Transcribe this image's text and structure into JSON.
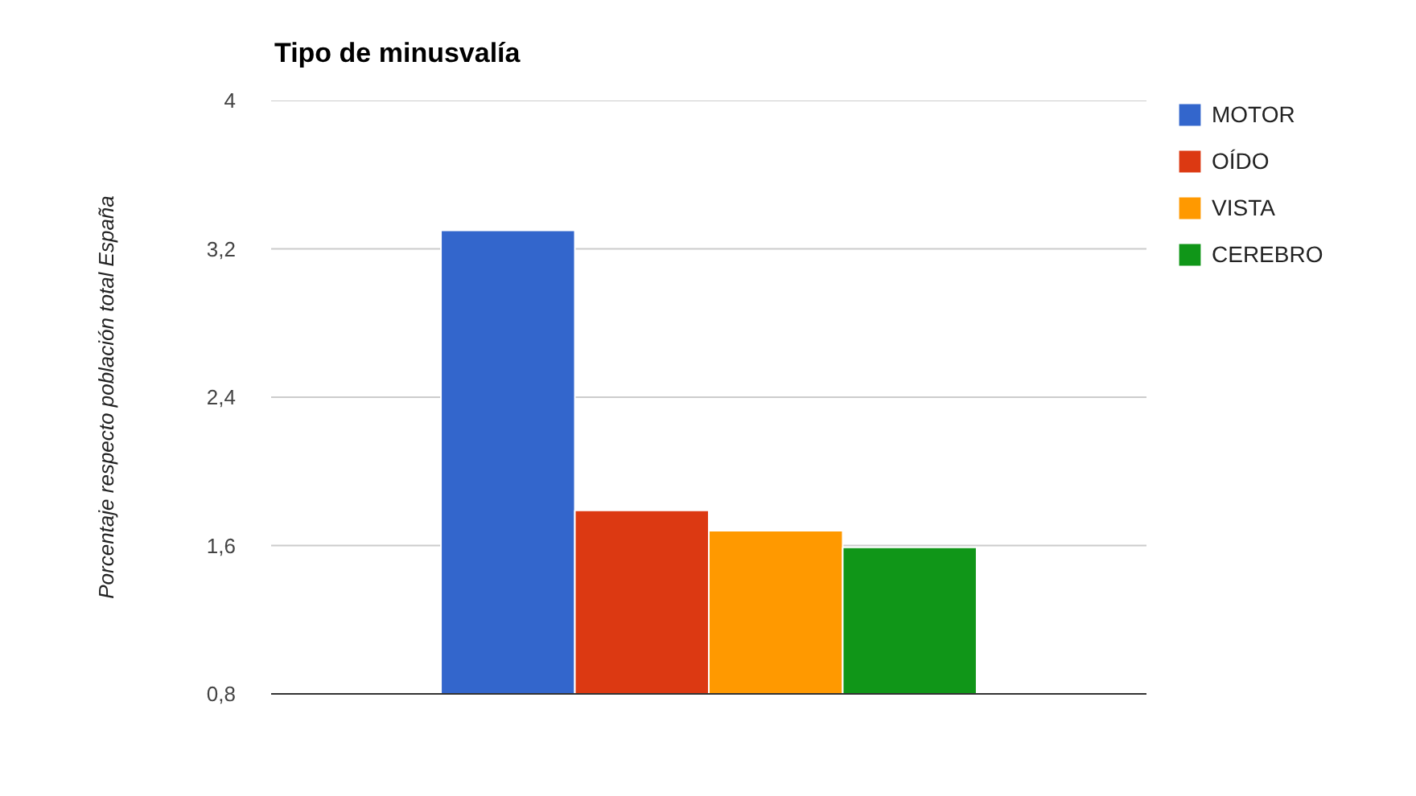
{
  "chart_data": {
    "type": "bar",
    "title": "Tipo de minusvalía",
    "ylabel": "Porcentaje respecto población total España",
    "categories": [
      null
    ],
    "series": [
      {
        "name": "MOTOR",
        "color": "#3366cc",
        "values": [
          3.3
        ]
      },
      {
        "name": "OÍDO",
        "color": "#dc3912",
        "values": [
          1.79
        ]
      },
      {
        "name": "VISTA",
        "color": "#ff9900",
        "values": [
          1.68
        ]
      },
      {
        "name": "CEREBRO",
        "color": "#109618",
        "values": [
          1.59
        ]
      }
    ],
    "ylim": [
      0.8,
      4
    ],
    "yticks": [
      {
        "value": 0.8,
        "label": "0,8"
      },
      {
        "value": 1.6,
        "label": "1,6"
      },
      {
        "value": 2.4,
        "label": "2,4"
      },
      {
        "value": 3.2,
        "label": "3,2"
      },
      4
    ],
    "grid": "y",
    "legend": "right",
    "tick_labels": "y"
  }
}
